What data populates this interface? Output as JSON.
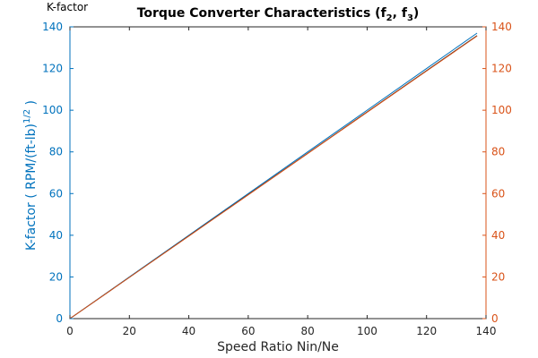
{
  "chart_data": {
    "type": "line",
    "title": "Torque Converter Characteristics (f",
    "title_sub1": "2",
    "title_mid": ", f",
    "title_sub2": "3",
    "title_end": ")",
    "corner_label": "K-factor",
    "xlabel": "Speed Ratio Nin/Ne",
    "ylabel_left": "K-factor ( RPM/(ft-lb)",
    "ylabel_left_sup": "1/2",
    "ylabel_left_end": " )",
    "xlim": [
      0,
      140
    ],
    "ylim_left": [
      0,
      140
    ],
    "ylim_right": [
      0,
      140
    ],
    "xticks": [
      0,
      20,
      40,
      60,
      80,
      100,
      120,
      140
    ],
    "yticks_left": [
      0,
      20,
      40,
      60,
      80,
      100,
      120,
      140
    ],
    "yticks_right": [
      0,
      20,
      40,
      60,
      80,
      100,
      120,
      140
    ],
    "grid": false,
    "colors": {
      "left_axis": "#0072BD",
      "right_axis": "#D95319",
      "axes": "#262626"
    },
    "series": [
      {
        "axis": "left",
        "color": "#0072BD",
        "x": [
          0,
          20,
          40,
          60,
          80,
          100,
          120,
          137
        ],
        "y": [
          0,
          20,
          40,
          60,
          80,
          100,
          120,
          137
        ]
      },
      {
        "axis": "left",
        "color": "#262626",
        "x": [
          0,
          20,
          40,
          60,
          80,
          100,
          120,
          137
        ],
        "y": [
          0,
          19.8,
          39.7,
          59.5,
          79.3,
          99.2,
          119,
          135.8
        ]
      },
      {
        "axis": "right",
        "color": "#D95319",
        "x": [
          0,
          20,
          40,
          60,
          80,
          100,
          120,
          137
        ],
        "y": [
          0,
          19.8,
          39.6,
          59.4,
          79.2,
          99,
          118.8,
          135.6
        ]
      }
    ]
  }
}
